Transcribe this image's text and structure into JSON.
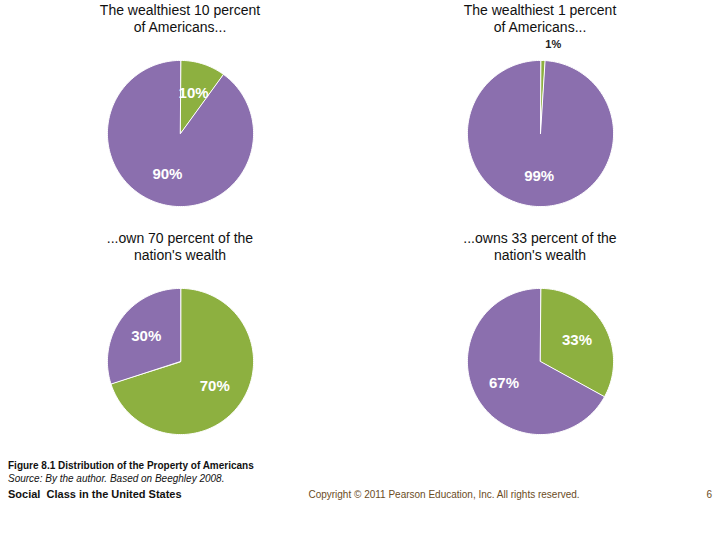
{
  "chart_data": [
    {
      "type": "pie",
      "title": "The wealthiest 10 percent\nof Americans...",
      "values": [
        10,
        90
      ],
      "value_labels": [
        "10%",
        "90%"
      ],
      "colors": [
        "#8DB040",
        "#8B6FAE"
      ],
      "data_labels": true
    },
    {
      "type": "pie",
      "title": "The wealthiest 1 percent\nof Americans...",
      "values": [
        1,
        99
      ],
      "value_labels": [
        "1%",
        "99%"
      ],
      "colors": [
        "#8DB040",
        "#8B6FAE"
      ],
      "data_labels": true
    },
    {
      "type": "pie",
      "title": "...own 70 percent of the\nnation's wealth",
      "values": [
        70,
        30
      ],
      "value_labels": [
        "70%",
        "30%"
      ],
      "colors": [
        "#8DB040",
        "#8B6FAE"
      ],
      "data_labels": true
    },
    {
      "type": "pie",
      "title": "...owns 33 percent of the\nnation's wealth",
      "values": [
        33,
        67
      ],
      "value_labels": [
        "33%",
        "67%"
      ],
      "colors": [
        "#8DB040",
        "#8B6FAE"
      ],
      "data_labels": true
    }
  ],
  "annotations": [
    "Figure 8.1   Distribution of the Property of Americans",
    "Source: By the author. Based on Beeghley 2008.",
    "Copyright © 2011 Pearson Education, Inc. All rights reserved.",
    "6",
    "Social  Class in the United States"
  ]
}
